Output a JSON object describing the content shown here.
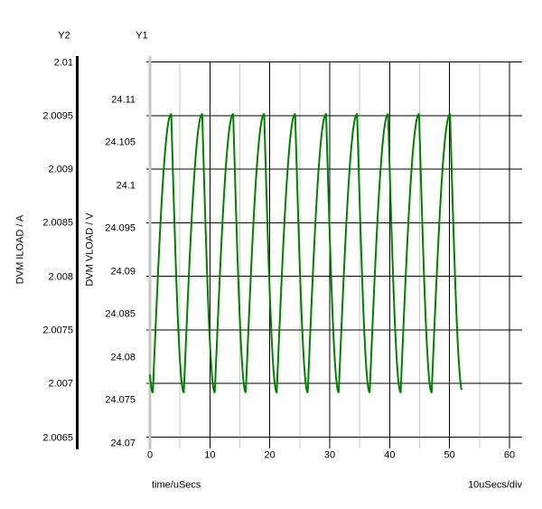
{
  "chart": {
    "y2_title": "Y2",
    "y1_title": "Y1",
    "y2_axis_label": "DVM ILOAD / A",
    "y1_axis_label": "DVM VLOAD / V",
    "x_axis_label": "time/uSecs",
    "x_scale_label": "10uSecs/div",
    "colors": {
      "trace": "#008000",
      "grid_major": "#000000",
      "grid_minor": "#c8c8c8",
      "y1_axis_line": "#c4c4c4",
      "y2_axis_line": "#000000",
      "text": "#000000",
      "background": "#ffffff"
    }
  },
  "chart_data": {
    "type": "line",
    "title": "",
    "series": [
      {
        "name": "DVM VLOAD",
        "axis": "Y1",
        "unit": "V",
        "color": "#008000"
      }
    ],
    "x": {
      "label": "time/uSecs",
      "unit": "uSecs",
      "per_div": "10uSecs/div",
      "ticks": [
        0,
        10,
        20,
        30,
        40,
        50,
        60
      ],
      "minor_ticks": [
        5,
        15,
        25,
        35,
        45,
        55
      ],
      "range": [
        0,
        62
      ]
    },
    "y1": {
      "label": "DVM VLOAD / V",
      "unit": "V",
      "ticks": [
        24.11,
        24.105,
        24.1,
        24.095,
        24.09,
        24.085,
        24.08,
        24.075,
        24.07
      ],
      "range": [
        24.07,
        24.115
      ]
    },
    "y2": {
      "label": "DVM ILOAD / A",
      "unit": "A",
      "ticks": [
        2.01,
        2.0095,
        2.009,
        2.0085,
        2.008,
        2.0075,
        2.007,
        2.0065
      ],
      "range": [
        2.0065,
        2.01
      ]
    },
    "grid": {
      "h_divisions": 7,
      "v_major_every_us": 10,
      "v_minor_every_us": 5
    },
    "waveform": {
      "description": "periodic ripple: rounded peaks, sharp V troughs",
      "v_max": 24.1083,
      "v_min": 24.0759,
      "v_at_t0": 24.078,
      "period_us": 5.17,
      "rise_time_us": 3.07,
      "fall_time_us": 2.1,
      "first_peak_us": 3.55,
      "t_start_us": 0,
      "t_end_us": 52,
      "peak_times_us": [
        3.55,
        8.72,
        13.89,
        19.06,
        24.23,
        29.4,
        34.57,
        39.74,
        44.91,
        50.08
      ],
      "trough_times_us": [
        0.48,
        5.65,
        10.82,
        15.99,
        21.16,
        26.33,
        31.5,
        36.67,
        41.84,
        47.01
      ]
    }
  }
}
